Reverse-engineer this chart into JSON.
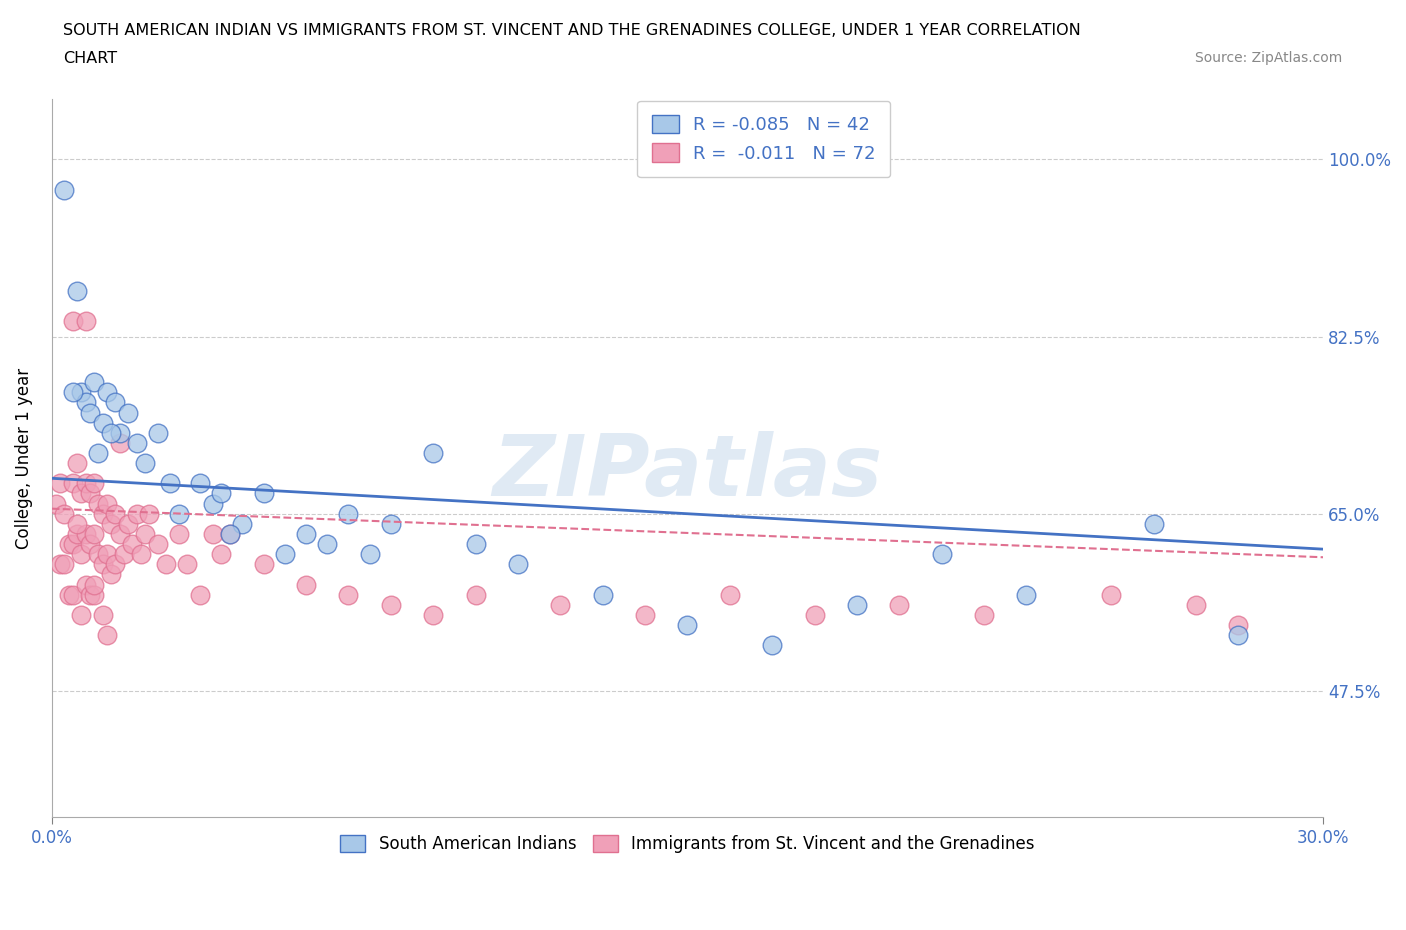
{
  "title_line1": "SOUTH AMERICAN INDIAN VS IMMIGRANTS FROM ST. VINCENT AND THE GRENADINES COLLEGE, UNDER 1 YEAR CORRELATION",
  "title_line2": "CHART",
  "source": "Source: ZipAtlas.com",
  "ylabel": "College, Under 1 year",
  "xlim": [
    0.0,
    0.3
  ],
  "ylim": [
    0.35,
    1.06
  ],
  "yticks": [
    0.475,
    0.65,
    0.825,
    1.0
  ],
  "ytick_labels": [
    "47.5%",
    "65.0%",
    "82.5%",
    "100.0%"
  ],
  "xticks": [
    0.0,
    0.3
  ],
  "xtick_labels": [
    "0.0%",
    "30.0%"
  ],
  "legend_r1": "R = -0.085",
  "legend_n1": "N = 42",
  "legend_r2": "R =  -0.011",
  "legend_n2": "N = 72",
  "color_blue": "#A8C8E8",
  "color_pink": "#F0A0B8",
  "color_blue_line": "#4472C4",
  "color_pink_line": "#E07090",
  "watermark": "ZIPatlas",
  "blue_scatter_x": [
    0.003,
    0.006,
    0.007,
    0.008,
    0.009,
    0.01,
    0.012,
    0.013,
    0.015,
    0.016,
    0.018,
    0.02,
    0.022,
    0.025,
    0.028,
    0.03,
    0.035,
    0.038,
    0.04,
    0.045,
    0.05,
    0.055,
    0.06,
    0.065,
    0.07,
    0.075,
    0.08,
    0.09,
    0.1,
    0.11,
    0.13,
    0.15,
    0.17,
    0.19,
    0.21,
    0.23,
    0.26,
    0.28,
    0.005,
    0.011,
    0.014,
    0.042
  ],
  "blue_scatter_y": [
    0.97,
    0.87,
    0.77,
    0.76,
    0.75,
    0.78,
    0.74,
    0.77,
    0.76,
    0.73,
    0.75,
    0.72,
    0.7,
    0.73,
    0.68,
    0.65,
    0.68,
    0.66,
    0.67,
    0.64,
    0.67,
    0.61,
    0.63,
    0.62,
    0.65,
    0.61,
    0.64,
    0.71,
    0.62,
    0.6,
    0.57,
    0.54,
    0.52,
    0.56,
    0.61,
    0.57,
    0.64,
    0.53,
    0.77,
    0.71,
    0.73,
    0.63
  ],
  "pink_scatter_x": [
    0.001,
    0.002,
    0.002,
    0.003,
    0.003,
    0.004,
    0.004,
    0.005,
    0.005,
    0.005,
    0.006,
    0.006,
    0.007,
    0.007,
    0.007,
    0.008,
    0.008,
    0.008,
    0.009,
    0.009,
    0.009,
    0.01,
    0.01,
    0.01,
    0.011,
    0.011,
    0.012,
    0.012,
    0.012,
    0.013,
    0.013,
    0.014,
    0.014,
    0.015,
    0.015,
    0.016,
    0.017,
    0.018,
    0.019,
    0.02,
    0.021,
    0.022,
    0.023,
    0.025,
    0.027,
    0.03,
    0.032,
    0.035,
    0.038,
    0.04,
    0.05,
    0.06,
    0.07,
    0.08,
    0.09,
    0.1,
    0.12,
    0.14,
    0.16,
    0.18,
    0.2,
    0.22,
    0.25,
    0.27,
    0.28,
    0.005,
    0.008,
    0.013,
    0.016,
    0.042,
    0.01,
    0.006
  ],
  "pink_scatter_y": [
    0.66,
    0.68,
    0.6,
    0.65,
    0.6,
    0.62,
    0.57,
    0.68,
    0.62,
    0.57,
    0.7,
    0.63,
    0.67,
    0.61,
    0.55,
    0.68,
    0.63,
    0.58,
    0.67,
    0.62,
    0.57,
    0.68,
    0.63,
    0.57,
    0.66,
    0.61,
    0.65,
    0.6,
    0.55,
    0.66,
    0.61,
    0.64,
    0.59,
    0.65,
    0.6,
    0.63,
    0.61,
    0.64,
    0.62,
    0.65,
    0.61,
    0.63,
    0.65,
    0.62,
    0.6,
    0.63,
    0.6,
    0.57,
    0.63,
    0.61,
    0.6,
    0.58,
    0.57,
    0.56,
    0.55,
    0.57,
    0.56,
    0.55,
    0.57,
    0.55,
    0.56,
    0.55,
    0.57,
    0.56,
    0.54,
    0.84,
    0.84,
    0.53,
    0.72,
    0.63,
    0.58,
    0.64
  ]
}
